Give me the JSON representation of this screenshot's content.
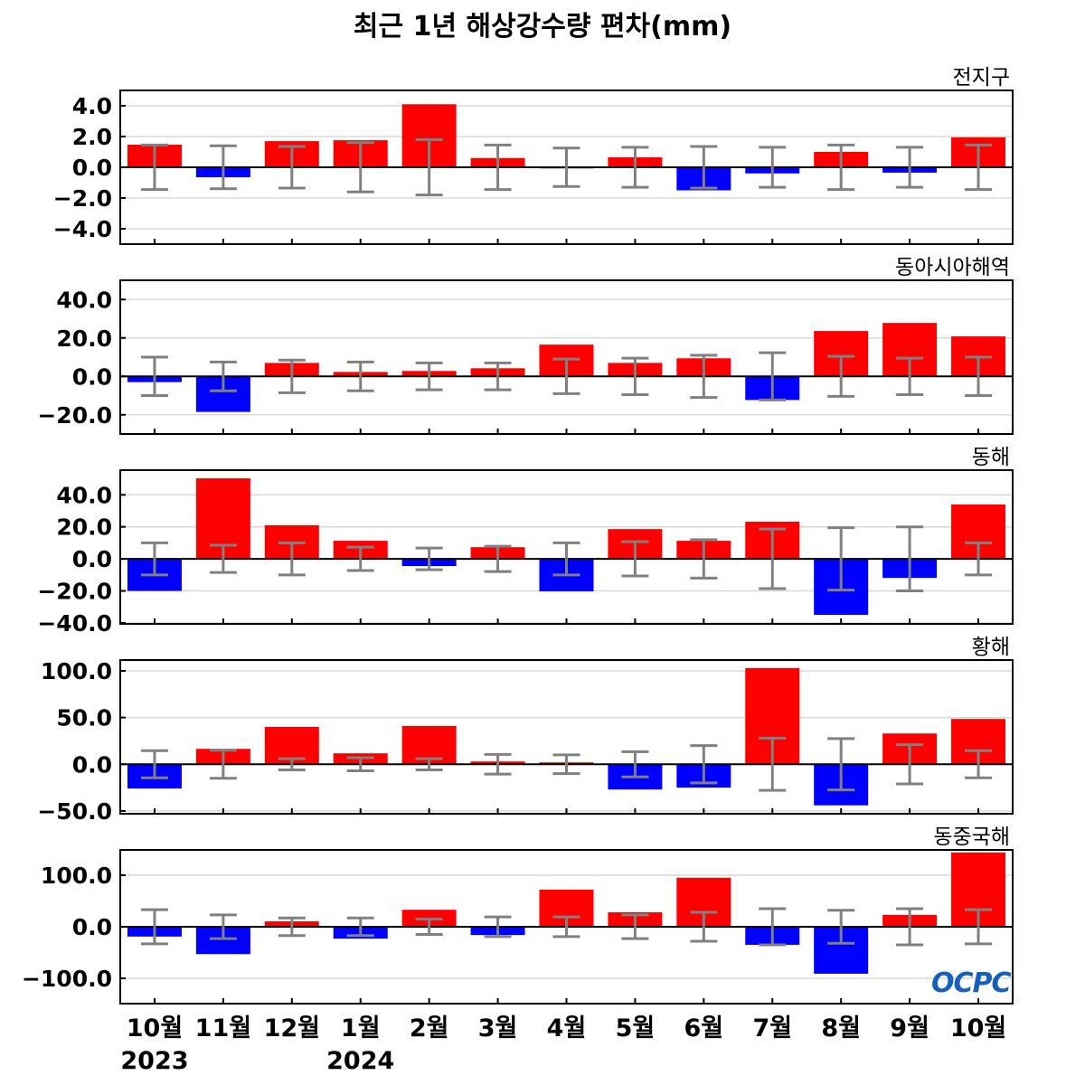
{
  "title": "최근 1년 해상강수량 편차(mm)",
  "logo": "OCPC",
  "colors": {
    "positive": "#ff0000",
    "negative": "#0000ff",
    "error_bar": "#808080",
    "grid": "#d9d9d9",
    "zero_line": "#000000"
  },
  "chart_data": [
    {
      "type": "bar",
      "title": "전지구",
      "categories": [
        "10월",
        "11월",
        "12월",
        "1월",
        "2월",
        "3월",
        "4월",
        "5월",
        "6월",
        "7월",
        "8월",
        "9월",
        "10월"
      ],
      "values": [
        1.47,
        -0.65,
        1.7,
        1.76,
        4.1,
        0.6,
        -0.05,
        0.65,
        -1.5,
        -0.4,
        1.0,
        -0.35,
        1.95
      ],
      "error": [
        1.45,
        1.4,
        1.35,
        1.6,
        1.8,
        1.45,
        1.25,
        1.3,
        1.35,
        1.3,
        1.45,
        1.3,
        1.45
      ],
      "ylim": [
        -5,
        5
      ],
      "yticks": [
        4,
        2,
        0,
        -2,
        -4
      ],
      "ytick_labels": [
        "4.0",
        "2.0",
        "0.0",
        "−2.0",
        "−4.0"
      ],
      "grid": true
    },
    {
      "type": "bar",
      "title": "동아시아해역",
      "categories": [
        "10월",
        "11월",
        "12월",
        "1월",
        "2월",
        "3월",
        "4월",
        "5월",
        "6월",
        "7월",
        "8월",
        "9월",
        "10월"
      ],
      "values": [
        -3,
        -18.5,
        7,
        2.3,
        2.8,
        4.2,
        16.5,
        7,
        9.4,
        -12.3,
        23.6,
        27.8,
        20.8
      ],
      "error": [
        10,
        7.5,
        8.5,
        7.5,
        7,
        7,
        9,
        9.5,
        11,
        12.3,
        10.4,
        9.5,
        10
      ],
      "ylim": [
        -30,
        50
      ],
      "yticks": [
        40,
        20,
        0,
        -20
      ],
      "ytick_labels": [
        "40.0",
        "20.0",
        "0.0",
        "−20.0"
      ],
      "grid": true
    },
    {
      "type": "bar",
      "title": "동해",
      "categories": [
        "10월",
        "11월",
        "12월",
        "1월",
        "2월",
        "3월",
        "4월",
        "5월",
        "6월",
        "7월",
        "8월",
        "9월",
        "10월"
      ],
      "values": [
        -20,
        50.3,
        21,
        11.3,
        -4.5,
        7.3,
        -20.3,
        18.6,
        11.3,
        23.2,
        -35,
        -11.9,
        34
      ],
      "error": [
        10,
        8.5,
        10,
        7.3,
        6.8,
        7.9,
        10,
        10.7,
        12,
        18.6,
        19.5,
        20,
        10
      ],
      "ylim": [
        -40.6,
        55.4
      ],
      "yticks": [
        40,
        20,
        0,
        -20,
        -40
      ],
      "ytick_labels": [
        "40.0",
        "20.0",
        "0.0",
        "−20.0",
        "−40.0"
      ],
      "grid": true
    },
    {
      "type": "bar",
      "title": "황해",
      "categories": [
        "10월",
        "11월",
        "12월",
        "1월",
        "2월",
        "3월",
        "4월",
        "5월",
        "6월",
        "7월",
        "8월",
        "9월",
        "10월"
      ],
      "values": [
        -26,
        16.5,
        40,
        11.7,
        41,
        3,
        2,
        -27,
        -25,
        103,
        -44,
        33,
        48.5
      ],
      "error": [
        14.5,
        15,
        6,
        7,
        6,
        10.5,
        10,
        13.5,
        20,
        28,
        27.5,
        21,
        14.5
      ],
      "ylim": [
        -53,
        111.6
      ],
      "yticks": [
        100,
        50,
        0,
        -50
      ],
      "ytick_labels": [
        "100.0",
        "50.0",
        "0.0",
        "−50.0"
      ],
      "grid": true
    },
    {
      "type": "bar",
      "title": "동중국해",
      "categories": [
        "10월",
        "11월",
        "12월",
        "1월",
        "2월",
        "3월",
        "4월",
        "5월",
        "6월",
        "7월",
        "8월",
        "9월",
        "10월"
      ],
      "values": [
        -19,
        -53,
        10.5,
        -23,
        33,
        -16,
        72,
        28,
        95,
        -35,
        -91,
        23,
        144
      ],
      "error": [
        33,
        23,
        17,
        17,
        15,
        19,
        19,
        23,
        28,
        35,
        32,
        35,
        33
      ],
      "ylim": [
        -149,
        149
      ],
      "yticks": [
        100,
        0,
        -100
      ],
      "ytick_labels": [
        "100.0",
        "0.0",
        "−100.0"
      ],
      "grid": true
    }
  ],
  "x_axis": {
    "month_labels": [
      "10월",
      "11월",
      "12월",
      "1월",
      "2월",
      "3월",
      "4월",
      "5월",
      "6월",
      "7월",
      "8월",
      "9월",
      "10월"
    ],
    "year_labels": [
      {
        "index": 0,
        "label": "2023"
      },
      {
        "index": 3,
        "label": "2024"
      }
    ]
  }
}
